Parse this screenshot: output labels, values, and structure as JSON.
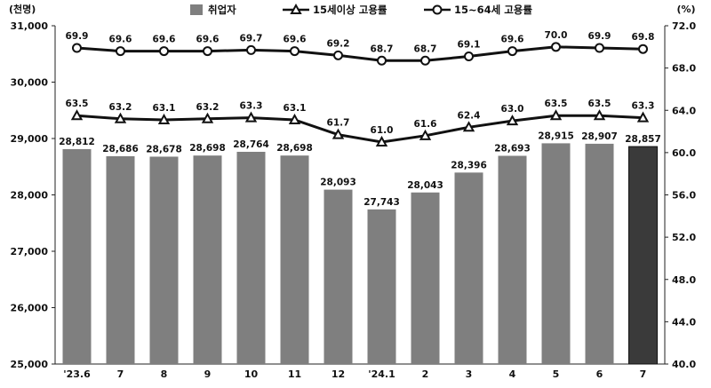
{
  "chart_data": {
    "type": "bar",
    "categories": [
      "'23.6",
      "7",
      "8",
      "9",
      "10",
      "11",
      "12",
      "'24.1",
      "2",
      "3",
      "4",
      "5",
      "6",
      "7"
    ],
    "left_unit": "(천명)",
    "right_unit": "(%)",
    "left_ylim": [
      25000,
      31000
    ],
    "left_ticks": [
      "25,000",
      "26,000",
      "27,000",
      "28,000",
      "29,000",
      "30,000",
      "31,000"
    ],
    "right_ylim": [
      40.0,
      72.0
    ],
    "right_ticks": [
      "40.0",
      "44.0",
      "48.0",
      "52.0",
      "56.0",
      "60.0",
      "64.0",
      "68.0",
      "72.0"
    ],
    "bar_series": {
      "name": "취업자",
      "values": [
        28812,
        28686,
        28678,
        28698,
        28764,
        28698,
        28093,
        27743,
        28043,
        28396,
        28693,
        28915,
        28907,
        28857
      ],
      "labels": [
        "28,812",
        "28,686",
        "28,678",
        "28,698",
        "28,764",
        "28,698",
        "28,093",
        "27,743",
        "28,043",
        "28,396",
        "28,693",
        "28,915",
        "28,907",
        "28,857"
      ],
      "color": "#7f7f7f",
      "highlight_color": "#3a3a3a",
      "highlight_index": 13
    },
    "line_series": [
      {
        "name": "15세이상 고용률",
        "marker": "triangle",
        "values": [
          63.5,
          63.2,
          63.1,
          63.2,
          63.3,
          63.1,
          61.7,
          61.0,
          61.6,
          62.4,
          63.0,
          63.5,
          63.5,
          63.3
        ],
        "labels": [
          "63.5",
          "63.2",
          "63.1",
          "63.2",
          "63.3",
          "63.1",
          "61.7",
          "61.0",
          "61.6",
          "62.4",
          "63.0",
          "63.5",
          "63.5",
          "63.3"
        ]
      },
      {
        "name": "15~64세 고용률",
        "marker": "circle",
        "values": [
          69.9,
          69.6,
          69.6,
          69.6,
          69.7,
          69.6,
          69.2,
          68.7,
          68.7,
          69.1,
          69.6,
          70.0,
          69.9,
          69.8
        ],
        "labels": [
          "69.9",
          "69.6",
          "69.6",
          "69.6",
          "69.7",
          "69.6",
          "69.2",
          "68.7",
          "68.7",
          "69.1",
          "69.6",
          "70.0",
          "69.9",
          "69.8"
        ]
      }
    ],
    "legend_position": "top"
  }
}
